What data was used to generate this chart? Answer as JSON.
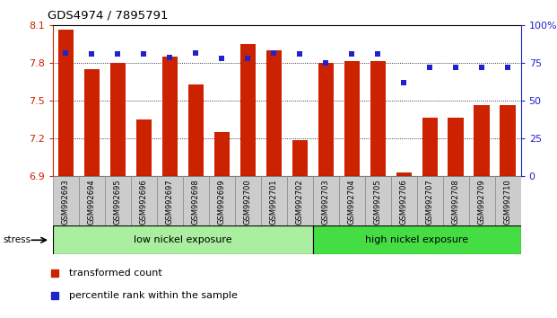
{
  "title": "GDS4974 / 7895791",
  "samples": [
    "GSM992693",
    "GSM992694",
    "GSM992695",
    "GSM992696",
    "GSM992697",
    "GSM992698",
    "GSM992699",
    "GSM992700",
    "GSM992701",
    "GSM992702",
    "GSM992703",
    "GSM992704",
    "GSM992705",
    "GSM992706",
    "GSM992707",
    "GSM992708",
    "GSM992709",
    "GSM992710"
  ],
  "red_bars": [
    8.07,
    7.75,
    7.8,
    7.35,
    7.85,
    7.63,
    7.25,
    7.95,
    7.9,
    7.19,
    7.8,
    7.82,
    7.82,
    6.93,
    7.37,
    7.37,
    7.47,
    7.47
  ],
  "blue_dots_pct": [
    82,
    81,
    81,
    81,
    79,
    82,
    78,
    78,
    82,
    81,
    75,
    81,
    81,
    62,
    72,
    72,
    72,
    72
  ],
  "ymin": 6.9,
  "ymax": 8.1,
  "yticks": [
    6.9,
    7.2,
    7.5,
    7.8,
    8.1
  ],
  "right_yticks": [
    0,
    25,
    50,
    75,
    100
  ],
  "bar_color": "#CC2200",
  "dot_color": "#2222CC",
  "group1_count": 10,
  "group1_label": "low nickel exposure",
  "group2_label": "high nickel exposure",
  "group1_color": "#AAEEA0",
  "group2_color": "#44DD44",
  "stress_label": "stress",
  "legend_bar": "transformed count",
  "legend_dot": "percentile rank within the sample",
  "xtick_bg": "#CCCCCC",
  "xtick_border": "#888888"
}
